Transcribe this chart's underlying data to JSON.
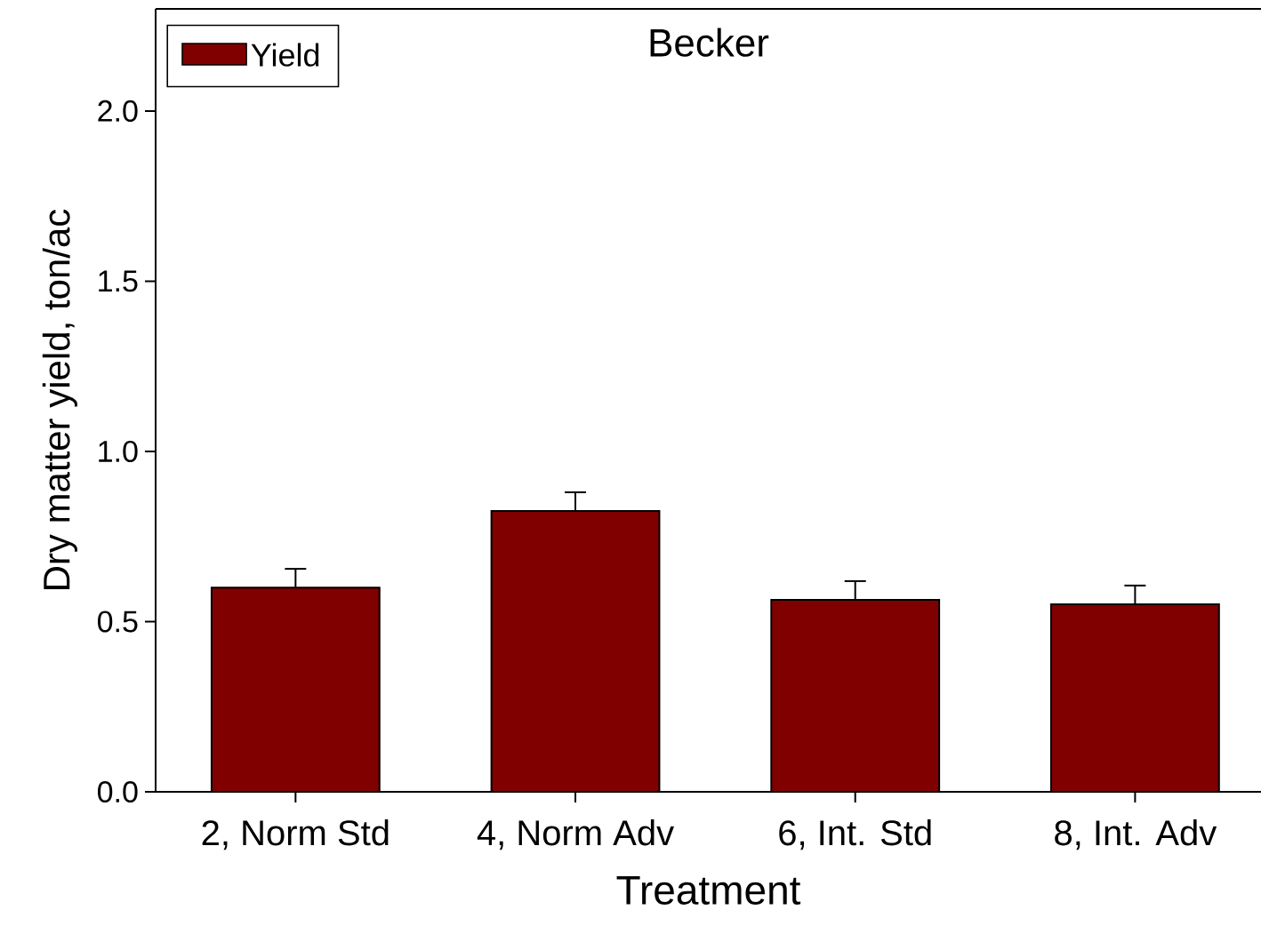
{
  "chart_data": {
    "type": "bar",
    "title": "Becker",
    "xlabel": "Treatment",
    "ylabel": "Dry matter yield, ton/ac",
    "categories": [
      "2, Norm Std",
      "4, Norm Adv",
      "6, Int. Std",
      "8, Int. Adv"
    ],
    "series": [
      {
        "name": "Yield",
        "color": "#800000",
        "values": [
          0.6,
          0.825,
          0.564,
          0.551
        ],
        "errors": [
          0.055,
          0.055,
          0.055,
          0.055
        ]
      }
    ],
    "ylim": [
      0,
      2.3
    ],
    "yticks": [
      {
        "value": 0,
        "label": "0.0"
      },
      {
        "value": 0.5,
        "label": "0.5"
      },
      {
        "value": 1.0,
        "label": "1.0"
      },
      {
        "value": 1.5,
        "label": "1.5"
      },
      {
        "value": 2.0,
        "label": "2.0"
      }
    ],
    "legend": "top left",
    "grid": false
  }
}
